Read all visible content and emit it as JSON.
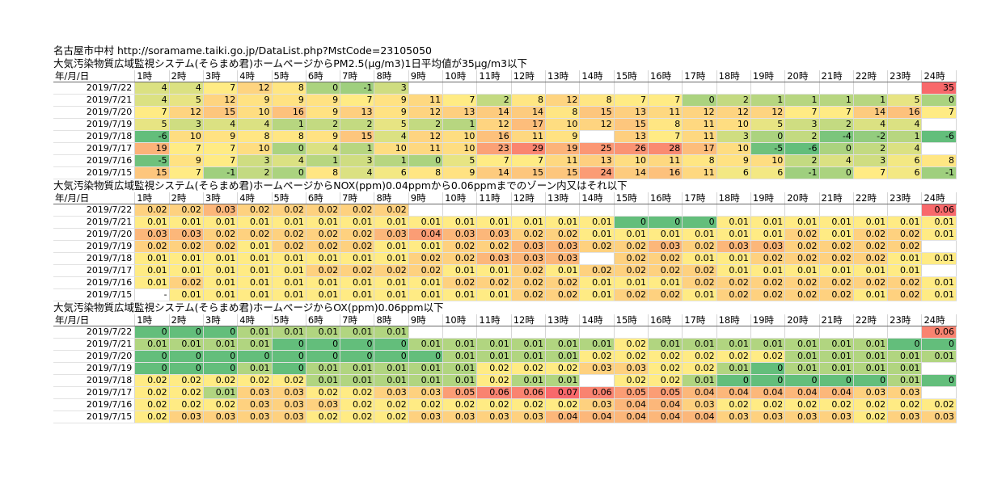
{
  "header": {
    "location_url": "名古屋市中村 http://soramame.taiki.go.jp/DataList.php?MstCode=23105050"
  },
  "columns": [
    "年/月/日",
    "1時",
    "2時",
    "3時",
    "4時",
    "5時",
    "6時",
    "7時",
    "8時",
    "9時",
    "10時",
    "11時",
    "12時",
    "13時",
    "14時",
    "15時",
    "16時",
    "17時",
    "18時",
    "19時",
    "20時",
    "21時",
    "22時",
    "23時",
    "24時"
  ],
  "sections": [
    {
      "title": "大気汚染物質広域監視システム(そらまめ君)ホームページからPM2.5(μg/m3)1日平均値が35μg/m3以下",
      "kind": "pm25",
      "rows": [
        {
          "date": "2019/7/22",
          "values": [
            "4",
            "4",
            "7",
            "12",
            "8",
            "0",
            "-1",
            "3",
            "",
            "",
            "",
            "",
            "",
            "",
            "",
            "",
            "",
            "",
            "",
            "",
            "",
            "",
            "",
            "35"
          ]
        },
        {
          "date": "2019/7/21",
          "values": [
            "4",
            "5",
            "12",
            "9",
            "9",
            "9",
            "7",
            "9",
            "11",
            "7",
            "2",
            "8",
            "12",
            "8",
            "7",
            "7",
            "0",
            "2",
            "1",
            "1",
            "1",
            "1",
            "5",
            "0"
          ]
        },
        {
          "date": "2019/7/20",
          "values": [
            "7",
            "12",
            "15",
            "10",
            "16",
            "9",
            "13",
            "9",
            "12",
            "13",
            "14",
            "14",
            "8",
            "15",
            "13",
            "11",
            "12",
            "12",
            "12",
            "7",
            "7",
            "14",
            "16",
            "7"
          ]
        },
        {
          "date": "2019/7/19",
          "values": [
            "5",
            "3",
            "4",
            "4",
            "1",
            "2",
            "2",
            "5",
            "2",
            "1",
            "12",
            "17",
            "10",
            "12",
            "15",
            "8",
            "11",
            "10",
            "5",
            "3",
            "2",
            "4",
            "4",
            ""
          ]
        },
        {
          "date": "2019/7/18",
          "values": [
            "-6",
            "10",
            "9",
            "8",
            "8",
            "9",
            "15",
            "4",
            "12",
            "10",
            "16",
            "11",
            "9",
            "",
            "13",
            "7",
            "11",
            "3",
            "0",
            "2",
            "-4",
            "-2",
            "1",
            "-6"
          ]
        },
        {
          "date": "2019/7/17",
          "values": [
            "19",
            "7",
            "7",
            "10",
            "0",
            "4",
            "1",
            "10",
            "11",
            "10",
            "23",
            "29",
            "19",
            "25",
            "26",
            "28",
            "17",
            "10",
            "-5",
            "-6",
            "0",
            "2",
            "4",
            ""
          ]
        },
        {
          "date": "2019/7/16",
          "values": [
            "-5",
            "9",
            "7",
            "3",
            "4",
            "1",
            "3",
            "1",
            "0",
            "5",
            "7",
            "7",
            "11",
            "13",
            "10",
            "11",
            "8",
            "9",
            "10",
            "2",
            "4",
            "3",
            "6",
            "8"
          ]
        },
        {
          "date": "2019/7/15",
          "values": [
            "15",
            "7",
            "-1",
            "2",
            "0",
            "8",
            "4",
            "6",
            "8",
            "9",
            "14",
            "15",
            "15",
            "24",
            "14",
            "16",
            "11",
            "6",
            "6",
            "-1",
            "0",
            "7",
            "6",
            "-1"
          ]
        }
      ]
    },
    {
      "title": "大気汚染物質広域監視システム(そらまめ君)ホームページからNOX(ppm)0.04ppmから0.06ppmまでのゾーン内又はそれ以下",
      "kind": "nox",
      "rows": [
        {
          "date": "2019/7/22",
          "values": [
            "0.02",
            "0.02",
            "0.03",
            "0.02",
            "0.02",
            "0.02",
            "0.02",
            "0.02",
            "",
            "",
            "",
            "",
            "",
            "",
            "",
            "",
            "",
            "",
            "",
            "",
            "",
            "",
            "",
            "0.06"
          ]
        },
        {
          "date": "2019/7/21",
          "values": [
            "0.01",
            "0.01",
            "0.01",
            "0.01",
            "0.01",
            "0.01",
            "0.01",
            "0.01",
            "0.01",
            "0.01",
            "0.01",
            "0.01",
            "0.01",
            "0.01",
            "0",
            "0",
            "0",
            "0.01",
            "0.01",
            "0.01",
            "0.01",
            "0.01",
            "0.01",
            "0.01"
          ]
        },
        {
          "date": "2019/7/20",
          "values": [
            "0.03",
            "0.03",
            "0.02",
            "0.02",
            "0.02",
            "0.02",
            "0.02",
            "0.03",
            "0.04",
            "0.03",
            "0.03",
            "0.02",
            "0.02",
            "0.01",
            "0.01",
            "0.01",
            "0.01",
            "0.01",
            "0.01",
            "0.02",
            "0.01",
            "0.02",
            "0.02",
            "0.01"
          ]
        },
        {
          "date": "2019/7/19",
          "values": [
            "0.02",
            "0.02",
            "0.02",
            "0.01",
            "0.02",
            "0.02",
            "0.02",
            "0.01",
            "0.01",
            "0.02",
            "0.02",
            "0.03",
            "0.03",
            "0.02",
            "0.02",
            "0.03",
            "0.02",
            "0.03",
            "0.03",
            "0.02",
            "0.02",
            "0.02",
            "0.02",
            ""
          ]
        },
        {
          "date": "2019/7/18",
          "values": [
            "0.01",
            "0.01",
            "0.01",
            "0.01",
            "0.01",
            "0.01",
            "0.01",
            "0.01",
            "0.02",
            "0.02",
            "0.03",
            "0.03",
            "0.03",
            "",
            "0.02",
            "0.02",
            "0.01",
            "0.01",
            "0.02",
            "0.02",
            "0.02",
            "0.02",
            "0.01",
            "0.01"
          ]
        },
        {
          "date": "2019/7/17",
          "values": [
            "0.01",
            "0.01",
            "0.01",
            "0.01",
            "0.01",
            "0.02",
            "0.02",
            "0.02",
            "0.02",
            "0.01",
            "0.01",
            "0.02",
            "0.01",
            "0.02",
            "0.02",
            "0.02",
            "0.02",
            "0.01",
            "0.01",
            "0.01",
            "0.01",
            "0.01",
            "0.01",
            ""
          ]
        },
        {
          "date": "2019/7/16",
          "values": [
            "0.01",
            "0.02",
            "0.01",
            "0.01",
            "0.01",
            "0.01",
            "0.01",
            "0.01",
            "0.01",
            "0.02",
            "0.02",
            "0.02",
            "0.02",
            "0.01",
            "0.01",
            "0.01",
            "0.02",
            "0.02",
            "0.02",
            "0.02",
            "0.02",
            "0.02",
            "0.02",
            "0.01"
          ]
        },
        {
          "date": "2019/7/15",
          "values": [
            "-",
            "0.01",
            "0.01",
            "0.01",
            "0.01",
            "0.01",
            "0.01",
            "0.01",
            "0.01",
            "0.01",
            "0.01",
            "0.02",
            "0.02",
            "0.01",
            "0.02",
            "0.02",
            "0.01",
            "0.02",
            "0.02",
            "0.02",
            "0.02",
            "0.01",
            "0.02",
            "0.01"
          ]
        }
      ]
    },
    {
      "title": "大気汚染物質広域監視システム(そらまめ君)ホームページからOX(ppm)0.06ppm以下",
      "kind": "ox",
      "rows": [
        {
          "date": "2019/7/22",
          "values": [
            "0",
            "0",
            "0",
            "0.01",
            "0.01",
            "0.01",
            "0.01",
            "0.01",
            "",
            "",
            "",
            "",
            "",
            "",
            "",
            "",
            "",
            "",
            "",
            "",
            "",
            "",
            "",
            "0.06"
          ]
        },
        {
          "date": "2019/7/21",
          "values": [
            "0.01",
            "0.01",
            "0.01",
            "0.01",
            "0",
            "0",
            "0",
            "0",
            "0.01",
            "0.01",
            "0.01",
            "0.01",
            "0.01",
            "0.01",
            "0.02",
            "0.01",
            "0.01",
            "0.01",
            "0.01",
            "0.01",
            "0.01",
            "0.01",
            "0",
            "0"
          ]
        },
        {
          "date": "2019/7/20",
          "values": [
            "0",
            "0",
            "0",
            "0",
            "0",
            "0",
            "0",
            "0",
            "0",
            "0.01",
            "0.01",
            "0.01",
            "0.01",
            "0.02",
            "0.02",
            "0.02",
            "0.02",
            "0.02",
            "0.02",
            "0.01",
            "0.01",
            "0.01",
            "0.01",
            "0.01"
          ]
        },
        {
          "date": "2019/7/19",
          "values": [
            "0",
            "0",
            "0",
            "0.01",
            "0",
            "0.01",
            "0.01",
            "0.01",
            "0.01",
            "0.01",
            "0.02",
            "0.02",
            "0.02",
            "0.03",
            "0.03",
            "0.02",
            "0.02",
            "0.01",
            "0",
            "0.01",
            "0.01",
            "0.01",
            "0.01",
            ""
          ]
        },
        {
          "date": "2019/7/18",
          "values": [
            "0.02",
            "0.02",
            "0.02",
            "0.02",
            "0.02",
            "0.01",
            "0.01",
            "0.01",
            "0.01",
            "0.01",
            "0.02",
            "0.01",
            "0.01",
            "",
            "0.02",
            "0.02",
            "0.01",
            "0",
            "0",
            "0",
            "0",
            "0",
            "0.01",
            "0"
          ]
        },
        {
          "date": "2019/7/17",
          "values": [
            "0.02",
            "0.02",
            "0.01",
            "0.03",
            "0.03",
            "0.02",
            "0.02",
            "0.03",
            "0.03",
            "0.05",
            "0.06",
            "0.06",
            "0.07",
            "0.06",
            "0.05",
            "0.05",
            "0.04",
            "0.04",
            "0.04",
            "0.04",
            "0.04",
            "0.03",
            "0.03",
            ""
          ]
        },
        {
          "date": "2019/7/16",
          "values": [
            "0.02",
            "0.02",
            "0.02",
            "0.03",
            "0.03",
            "0.03",
            "0.02",
            "0.02",
            "0.02",
            "0.02",
            "0.02",
            "0.02",
            "0.02",
            "0.03",
            "0.04",
            "0.04",
            "0.03",
            "0.02",
            "0.02",
            "0.02",
            "0.02",
            "0.02",
            "0.02",
            "0.02"
          ]
        },
        {
          "date": "2019/7/15",
          "values": [
            "0.02",
            "0.03",
            "0.03",
            "0.03",
            "0.03",
            "0.02",
            "0.02",
            "0.02",
            "0.03",
            "0.03",
            "0.03",
            "0.03",
            "0.04",
            "0.04",
            "0.04",
            "0.04",
            "0.04",
            "0.03",
            "0.03",
            "0.03",
            "0.03",
            "0.02",
            "0.03",
            "0.03"
          ]
        }
      ]
    }
  ],
  "colors": {
    "scale_low": "#63be7b",
    "scale_mid": "#ffeb84",
    "scale_high": "#f8696b"
  }
}
